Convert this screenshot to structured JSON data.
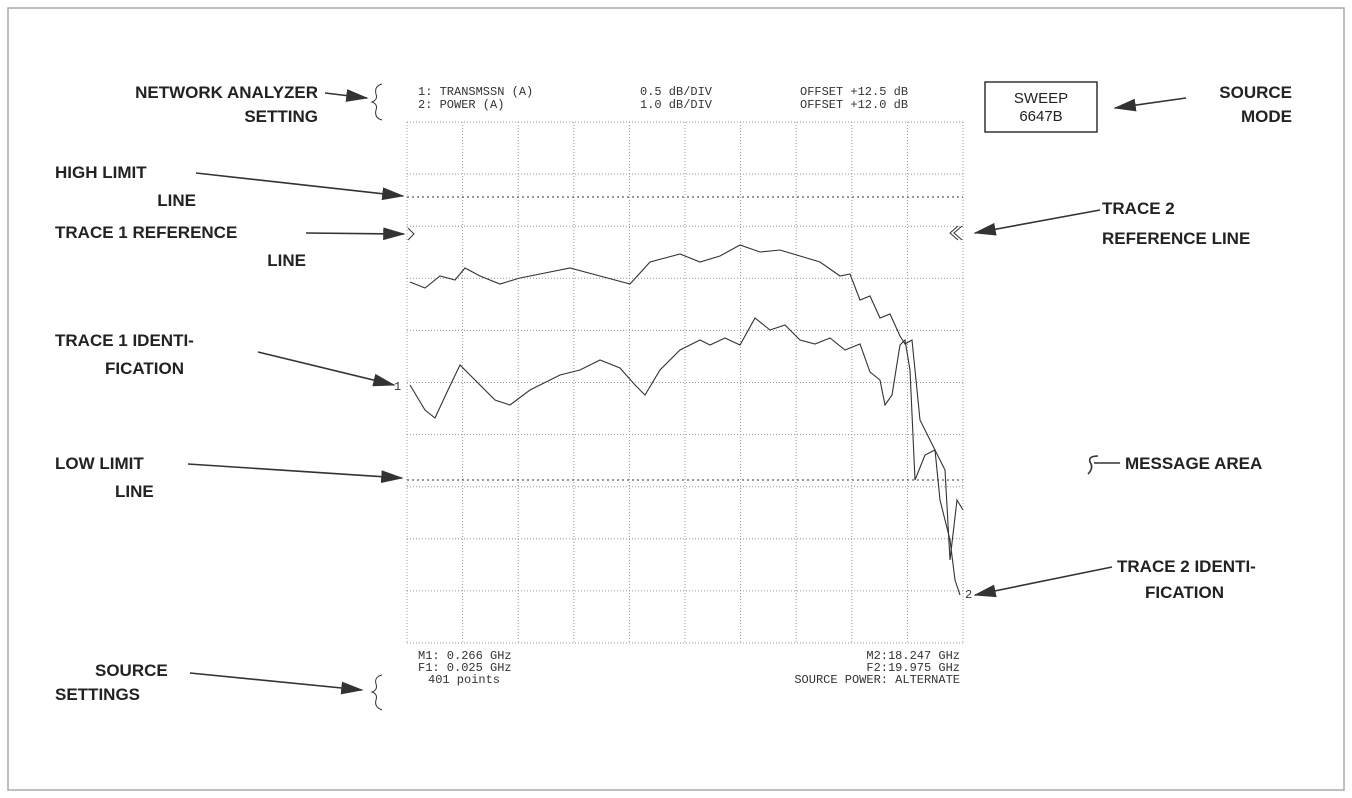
{
  "screen": {
    "header": [
      [
        "1: TRANSMSSN (A)",
        "0.5 dB/DIV",
        "OFFSET +12.5 dB"
      ],
      [
        "2: POWER (A)",
        "1.0 dB/DIV",
        "OFFSET +12.0 dB"
      ]
    ],
    "footer_left": [
      "M1: 0.266 GHz",
      "F1: 0.025 GHz",
      "401 points"
    ],
    "footer_right": [
      "M2:18.247 GHz",
      "F2:19.975 GHz",
      "SOURCE POWER: ALTERNATE"
    ],
    "trace1_id": "1",
    "trace2_id": "2"
  },
  "source_box": [
    "SWEEP",
    "6647B"
  ],
  "annotations": {
    "network_analyzer_setting": [
      "NETWORK ANALYZER",
      "SETTING"
    ],
    "high_limit_line": [
      "HIGH LIMIT",
      "LINE"
    ],
    "trace1_reference_line": [
      "TRACE 1 REFERENCE",
      "LINE"
    ],
    "trace1_identification": [
      "TRACE 1 IDENTI-",
      "FICATION"
    ],
    "low_limit_line": [
      "LOW LIMIT",
      "LINE"
    ],
    "source_settings": [
      "SOURCE",
      "SETTINGS"
    ],
    "source_mode": [
      "SOURCE",
      "MODE"
    ],
    "trace2_reference_line": [
      "TRACE 2",
      "REFERENCE LINE"
    ],
    "message_area": [
      "MESSAGE AREA"
    ],
    "trace2_identification": [
      "TRACE 2 IDENTI-",
      "FICATION"
    ]
  }
}
